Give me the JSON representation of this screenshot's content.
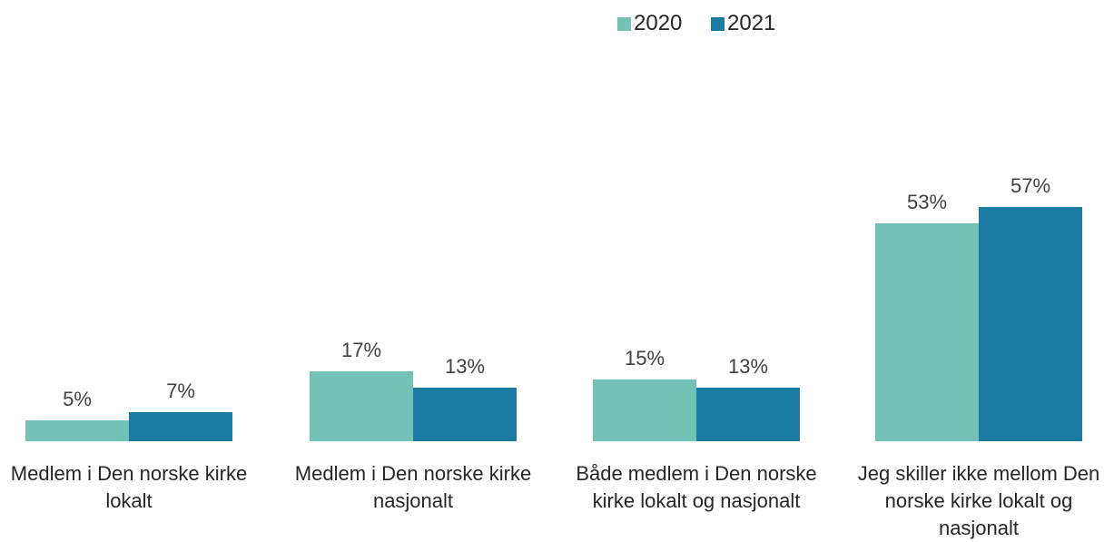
{
  "chart_data": {
    "type": "bar",
    "categories": [
      "Medlem i Den norske kirke lokalt",
      "Medlem i Den norske kirke nasjonalt",
      "Både medlem i Den norske kirke lokalt og nasjonalt",
      "Jeg skiller ikke mellom Den norske kirke lokalt og nasjonalt"
    ],
    "series": [
      {
        "name": "2020",
        "color": "#72c3b5",
        "values": [
          5,
          17,
          15,
          53
        ],
        "value_labels": [
          "5%",
          "17%",
          "15%",
          "53%"
        ]
      },
      {
        "name": "2021",
        "color": "#1c7ba3",
        "values": [
          7,
          13,
          13,
          57
        ],
        "value_labels": [
          "7%",
          "13%",
          "13%",
          "57%"
        ]
      }
    ],
    "legend": "top"
  }
}
